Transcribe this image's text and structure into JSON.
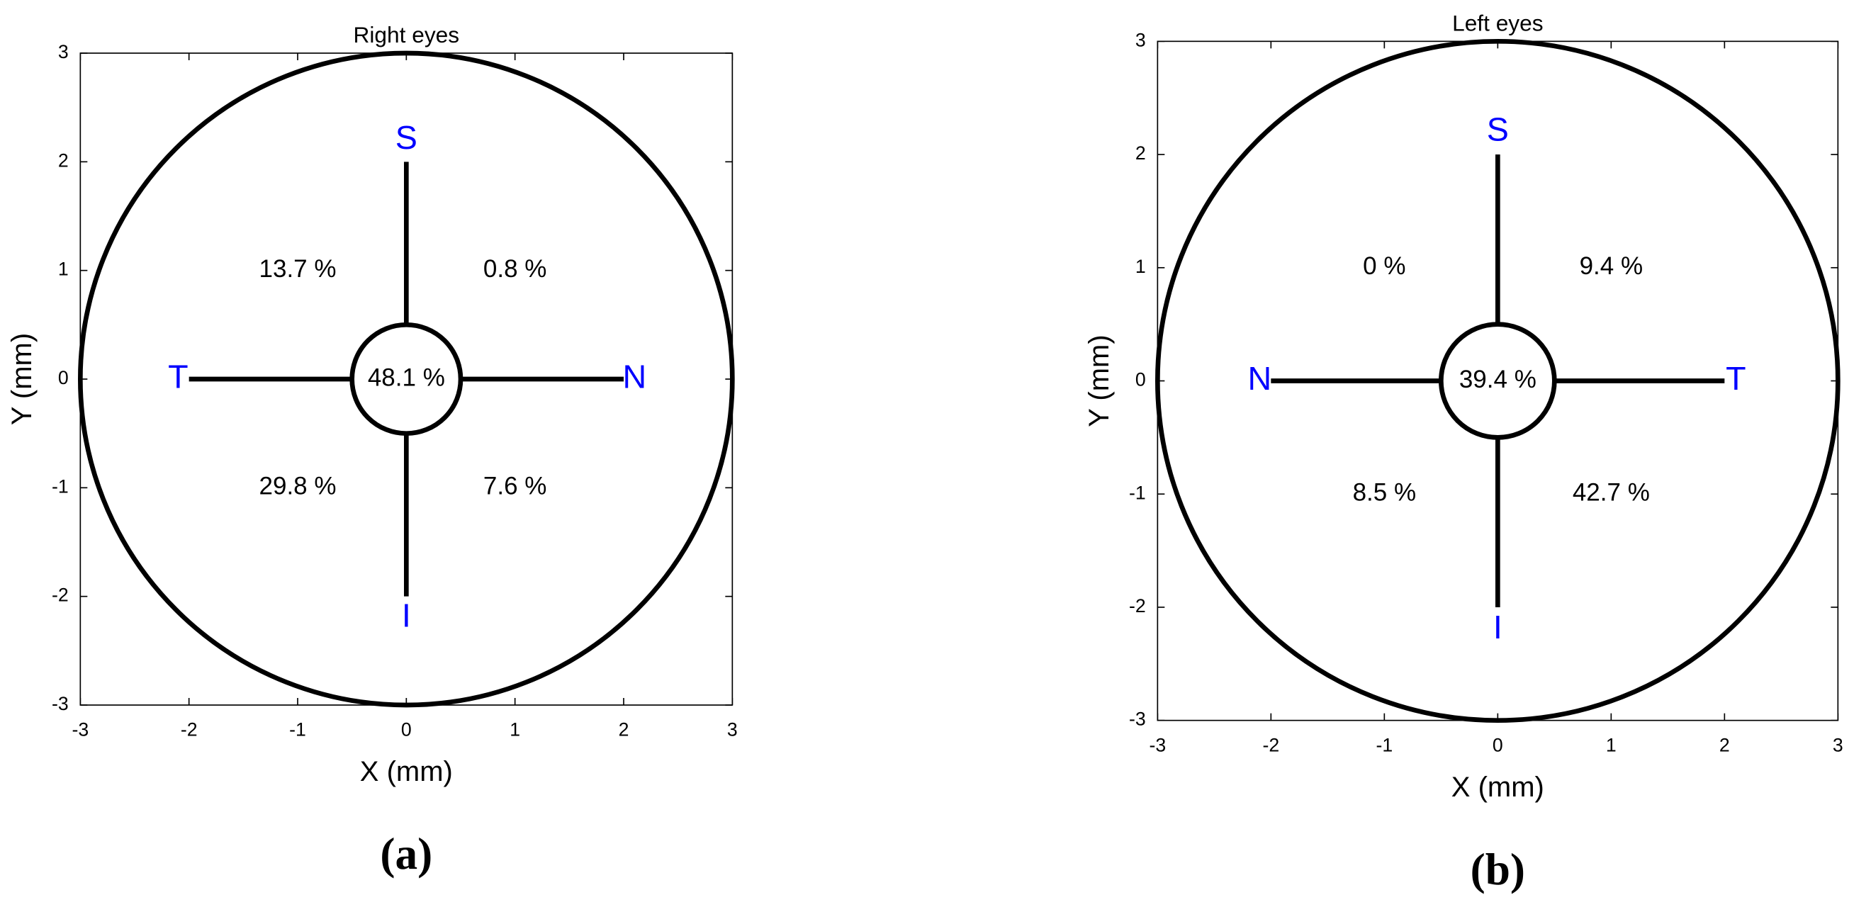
{
  "chart_data": [
    {
      "type": "quadrant",
      "title": "Right eyes",
      "panel": "(a)",
      "xlabel": "X (mm)",
      "ylabel": "Y (mm)",
      "xlim": [
        -3,
        3
      ],
      "ylim": [
        -3,
        3
      ],
      "xticks": [
        -3,
        -2,
        -1,
        0,
        1,
        2,
        3
      ],
      "yticks": [
        -3,
        -2,
        -1,
        0,
        1,
        2,
        3
      ],
      "directions": [
        "S",
        "I",
        "T",
        "N"
      ],
      "direction_color": "#0000ff",
      "line_color": "#000000",
      "values": [
        48.1,
        13.7,
        0.8,
        29.8,
        7.6
      ],
      "value_labels": [
        "48.1 %",
        "13.7 %",
        "0.8 %",
        "29.8 %",
        "7.6 %"
      ]
    },
    {
      "type": "quadrant",
      "title": "Left eyes",
      "panel": "(b)",
      "xlabel": "X (mm)",
      "ylabel": "Y (mm)",
      "xlim": [
        -3,
        3
      ],
      "ylim": [
        -3,
        3
      ],
      "xticks": [
        -3,
        -2,
        -1,
        0,
        1,
        2,
        3
      ],
      "yticks": [
        -3,
        -2,
        -1,
        0,
        1,
        2,
        3
      ],
      "directions": [
        "S",
        "I",
        "N",
        "T"
      ],
      "direction_color": "#0000ff",
      "line_color": "#000000",
      "values": [
        39.4,
        0,
        9.4,
        8.5,
        42.7
      ],
      "value_labels": [
        "39.4 %",
        "0 %",
        "9.4 %",
        "8.5 %",
        "42.7 %"
      ]
    }
  ]
}
